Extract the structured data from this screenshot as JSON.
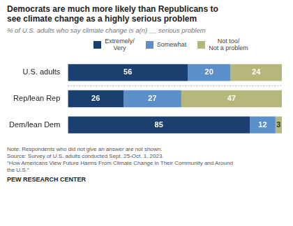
{
  "chart_data": {
    "type": "bar",
    "orientation": "horizontal",
    "stacked": true,
    "title": "Democrats are much more likely than Republicans to\nsee climate change as a highly serious problem",
    "subtitle": "% of U.S. adults who say climate change is a(n) __ serious problem",
    "categories": [
      "U.S. adults",
      "Rep/lean Rep",
      "Dem/lean Dem"
    ],
    "series": [
      {
        "name": "Extremely/\nVery",
        "color": "#1b3f6e",
        "values": [
          56,
          26,
          85
        ]
      },
      {
        "name": "Somewhat",
        "color": "#5b8fc9",
        "values": [
          20,
          27,
          12
        ]
      },
      {
        "name": "Not too/\nNot a problem",
        "color": "#b5b87a",
        "values": [
          24,
          47,
          3
        ]
      }
    ],
    "xlim": [
      0,
      100
    ],
    "data_labels": true,
    "tick_labels": "y",
    "grid": false,
    "legend": "top",
    "notes": [
      "Note: Respondents who did not give an answer are not shown.",
      "Source: Survey of U.S. adults conducted Sept. 25-Oct. 1, 2023.",
      "“How Americans View Future Harms From Climate Change in Their Community and Around",
      "the U.S.”"
    ],
    "footer": "PEW RESEARCH CENTER"
  }
}
